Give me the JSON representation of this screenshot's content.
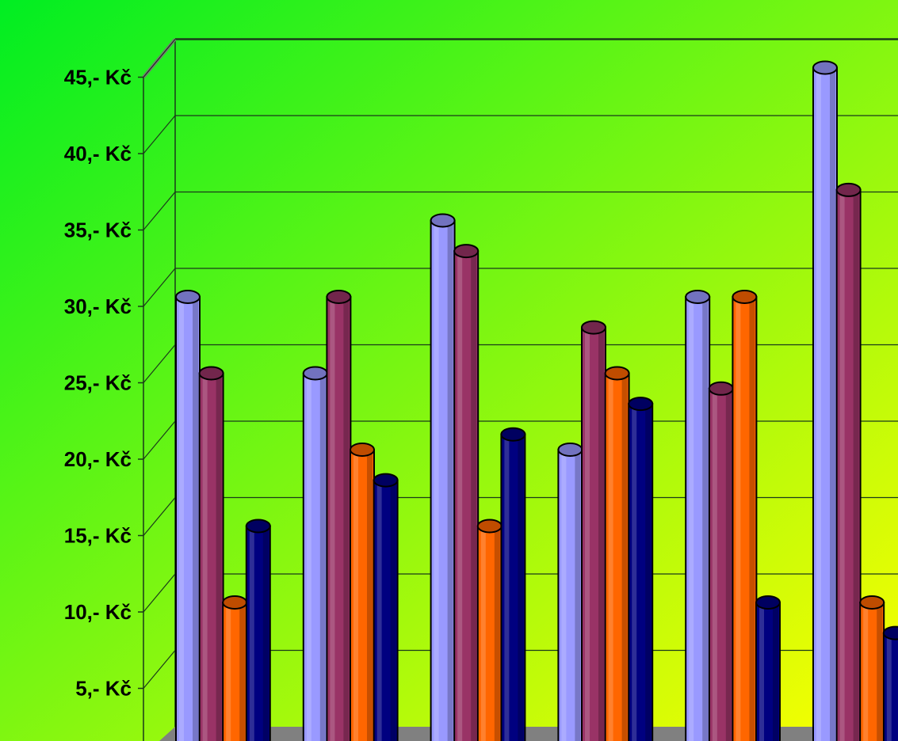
{
  "chart_data": {
    "type": "bar",
    "bar_style": "3d-cylinder",
    "title": "",
    "xlabel": "",
    "ylabel": "",
    "ylim": [
      0,
      45
    ],
    "yticks": [
      5,
      10,
      15,
      20,
      25,
      30,
      35,
      40,
      45
    ],
    "ytick_labels": [
      "5,- Kč",
      "10,- Kč",
      "15,- Kč",
      "20,- Kč",
      "25,- Kč",
      "30,- Kč",
      "35,- Kč",
      "40,- Kč",
      "45,- Kč"
    ],
    "grid": true,
    "legend": "none",
    "group_count": 6,
    "series": [
      {
        "color": "#9999ff",
        "values": [
          30,
          25,
          35,
          20,
          30,
          45
        ]
      },
      {
        "color": "#993366",
        "values": [
          25,
          30,
          33,
          28,
          24,
          37
        ]
      },
      {
        "color": "#ff6600",
        "values": [
          10,
          20,
          15,
          25,
          30,
          10
        ]
      },
      {
        "color": "#000080",
        "values": [
          15,
          18,
          21,
          23,
          10,
          8
        ]
      }
    ]
  },
  "colors": {
    "background_start": "#00ee22",
    "background_end": "#ffff00",
    "floor": "#808080",
    "gridline": "#1a3a1a",
    "outline": "#000000"
  }
}
